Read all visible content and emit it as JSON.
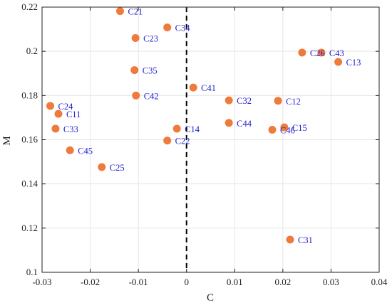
{
  "colors": {
    "marker": "#EE7A3B",
    "label": "#1F1FD1",
    "axis": "#222222",
    "grid": "#E6E6E6",
    "refline": "#000000"
  },
  "chart_data": {
    "type": "scatter",
    "title": "",
    "xlabel": "C",
    "ylabel": "M",
    "xlim": [
      -0.03,
      0.04
    ],
    "ylim": [
      0.1,
      0.22
    ],
    "xticks": [
      "-0.03",
      "-0.02",
      "-0.01",
      "0",
      "0.01",
      "0.02",
      "0.03",
      "0.04"
    ],
    "yticks": [
      "0.1",
      "0.12",
      "0.14",
      "0.16",
      "0.18",
      "0.2",
      "0.22"
    ],
    "grid": true,
    "reference_line": {
      "axis": "x",
      "value": 0,
      "style": "dashed"
    },
    "points": [
      {
        "label": "C21",
        "x": -0.0138,
        "y": 0.2182
      },
      {
        "label": "C34",
        "x": -0.004,
        "y": 0.2108
      },
      {
        "label": "C23",
        "x": -0.0106,
        "y": 0.206
      },
      {
        "label": "C26",
        "x": 0.024,
        "y": 0.1994
      },
      {
        "label": "C43",
        "x": 0.028,
        "y": 0.1994
      },
      {
        "label": "C13",
        "x": 0.0315,
        "y": 0.1952
      },
      {
        "label": "C35",
        "x": -0.0108,
        "y": 0.1915
      },
      {
        "label": "C41",
        "x": 0.0014,
        "y": 0.1836
      },
      {
        "label": "C42",
        "x": -0.0105,
        "y": 0.18
      },
      {
        "label": "C32",
        "x": 0.0088,
        "y": 0.1778
      },
      {
        "label": "C12",
        "x": 0.019,
        "y": 0.1776
      },
      {
        "label": "C24",
        "x": -0.0283,
        "y": 0.1753
      },
      {
        "label": "C11",
        "x": -0.0266,
        "y": 0.1717
      },
      {
        "label": "C44",
        "x": 0.0088,
        "y": 0.1676
      },
      {
        "label": "C15",
        "x": 0.0203,
        "y": 0.1656
      },
      {
        "label": "C46",
        "x": 0.0178,
        "y": 0.1645
      },
      {
        "label": "C33",
        "x": -0.0272,
        "y": 0.165
      },
      {
        "label": "C14",
        "x": -0.002,
        "y": 0.165
      },
      {
        "label": "C22",
        "x": -0.004,
        "y": 0.1596
      },
      {
        "label": "C45",
        "x": -0.0242,
        "y": 0.1552
      },
      {
        "label": "C25",
        "x": -0.0176,
        "y": 0.1476
      },
      {
        "label": "C31",
        "x": 0.0215,
        "y": 0.1148
      }
    ]
  }
}
